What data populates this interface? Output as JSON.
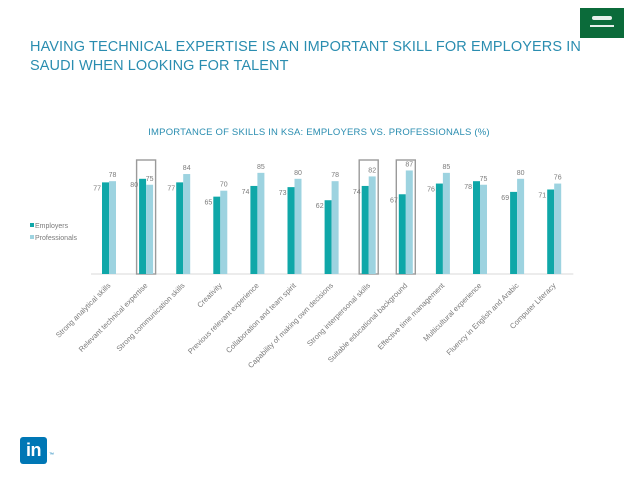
{
  "header": {
    "title": "HAVING TECHNICAL EXPERTISE IS AN IMPORTANT SKILL FOR EMPLOYERS IN SAUDI WHEN LOOKING FOR TALENT",
    "flag_icon": "saudi-flag-icon"
  },
  "footer": {
    "logo_text": "in",
    "logo_icon": "linkedin-logo-icon",
    "trademark": "™"
  },
  "colors": {
    "title": "#2a8db0",
    "employers": "#0fa7a8",
    "professionals": "#9dd3e0",
    "highlight_box": "#9a9a9a",
    "label": "#7a7a7a",
    "axis": "#d9d9d9"
  },
  "chart_data": {
    "type": "bar",
    "title": "IMPORTANCE OF SKILLS IN KSA: EMPLOYERS VS. PROFESSIONALS (%)",
    "categories": [
      "Strong analytical skills",
      "Relevant technical expertise",
      "Strong communication skills",
      "Creativity",
      "Previous relevant experience",
      "Collaboration and team spirit",
      "Capability of making own decisions",
      "Strong interpersonal skills",
      "Suitable educational background",
      "Effective time management",
      "Multicultural experience",
      "Fluency in English and Arabic",
      "Computer Literacy"
    ],
    "series": [
      {
        "name": "Employers",
        "values": [
          77,
          80,
          77,
          65,
          74,
          73,
          62,
          74,
          67,
          76,
          78,
          69,
          71
        ]
      },
      {
        "name": "Professionals",
        "values": [
          78,
          75,
          84,
          70,
          85,
          80,
          78,
          82,
          87,
          85,
          75,
          80,
          76
        ]
      }
    ],
    "highlighted_categories": [
      "Relevant technical expertise",
      "Strong interpersonal skills",
      "Suitable educational background"
    ],
    "ylim": [
      0,
      100
    ],
    "legend_position": "left",
    "xlabel": "",
    "ylabel": ""
  }
}
